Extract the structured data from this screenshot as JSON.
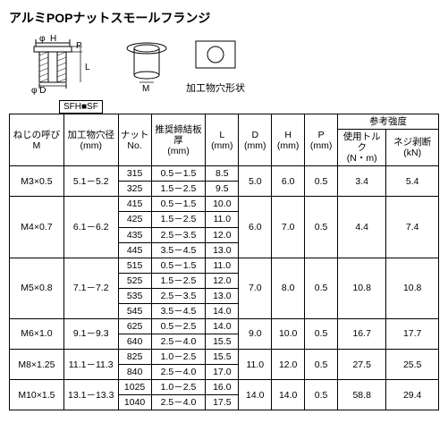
{
  "title": "アルミPOPナットスモールフランジ",
  "diagram": {
    "labels": {
      "H": "H",
      "P": "P",
      "L": "L",
      "D": "D",
      "M": "M",
      "phi": "φ"
    },
    "hole_shape_label": "加工物穴形状",
    "sfh_label": "SFH■SF"
  },
  "headers": {
    "thread": "ねじの呼び\nM",
    "hole": "加工物穴径\n(mm)",
    "nut": "ナット\nNo.",
    "thick": "推奨締結板厚\n(mm)",
    "L": "L\n(mm)",
    "D": "D\n(mm)",
    "H": "H\n(mm)",
    "P": "P\n(mm)",
    "strength_group": "参考強度",
    "torque": "使用トルク\n(N・m)",
    "shear": "ネジ剥断(kN)"
  },
  "groups": [
    {
      "thread": "M3×0.5",
      "hole": "5.1－5.2",
      "D": "5.0",
      "H": "6.0",
      "P": "0.5",
      "torque": "3.4",
      "shear": "5.4",
      "rows": [
        {
          "nut": "315",
          "thick": "0.5－1.5",
          "L": "8.5"
        },
        {
          "nut": "325",
          "thick": "1.5－2.5",
          "L": "9.5"
        }
      ]
    },
    {
      "thread": "M4×0.7",
      "hole": "6.1－6.2",
      "D": "6.0",
      "H": "7.0",
      "P": "0.5",
      "torque": "4.4",
      "shear": "7.4",
      "rows": [
        {
          "nut": "415",
          "thick": "0.5－1.5",
          "L": "10.0"
        },
        {
          "nut": "425",
          "thick": "1.5－2.5",
          "L": "11.0"
        },
        {
          "nut": "435",
          "thick": "2.5－3.5",
          "L": "12.0"
        },
        {
          "nut": "445",
          "thick": "3.5－4.5",
          "L": "13.0"
        }
      ]
    },
    {
      "thread": "M5×0.8",
      "hole": "7.1－7.2",
      "D": "7.0",
      "H": "8.0",
      "P": "0.5",
      "torque": "10.8",
      "shear": "10.8",
      "rows": [
        {
          "nut": "515",
          "thick": "0.5－1.5",
          "L": "11.0"
        },
        {
          "nut": "525",
          "thick": "1.5－2.5",
          "L": "12.0"
        },
        {
          "nut": "535",
          "thick": "2.5－3.5",
          "L": "13.0"
        },
        {
          "nut": "545",
          "thick": "3.5－4.5",
          "L": "14.0"
        }
      ]
    },
    {
      "thread": "M6×1.0",
      "hole": "9.1－9.3",
      "D": "9.0",
      "H": "10.0",
      "P": "0.5",
      "torque": "16.7",
      "shear": "17.7",
      "rows": [
        {
          "nut": "625",
          "thick": "0.5－2.5",
          "L": "14.0"
        },
        {
          "nut": "640",
          "thick": "2.5－4.0",
          "L": "15.5"
        }
      ]
    },
    {
      "thread": "M8×1.25",
      "hole": "11.1－11.3",
      "D": "11.0",
      "H": "12.0",
      "P": "0.5",
      "torque": "27.5",
      "shear": "25.5",
      "rows": [
        {
          "nut": "825",
          "thick": "1.0－2.5",
          "L": "15.5"
        },
        {
          "nut": "840",
          "thick": "2.5－4.0",
          "L": "17.0"
        }
      ]
    },
    {
      "thread": "M10×1.5",
      "hole": "13.1－13.3",
      "D": "14.0",
      "H": "14.0",
      "P": "0.5",
      "torque": "58.8",
      "shear": "29.4",
      "rows": [
        {
          "nut": "1025",
          "thick": "1.0－2.5",
          "L": "16.0"
        },
        {
          "nut": "1040",
          "thick": "2.5－4.0",
          "L": "17.5"
        }
      ]
    }
  ]
}
